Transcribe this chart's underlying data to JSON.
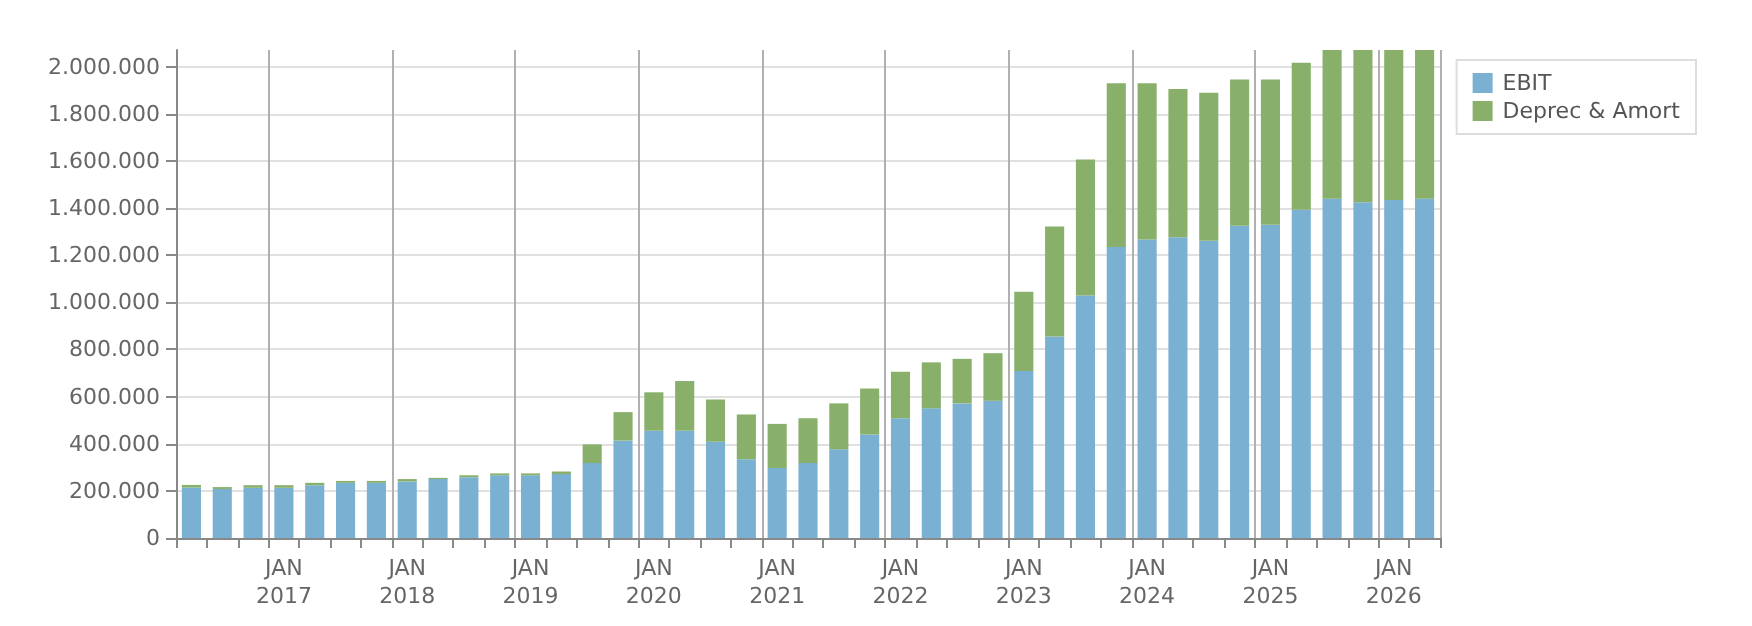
{
  "chart_data": {
    "type": "bar",
    "stacked": true,
    "categories": [
      null,
      null,
      null,
      "JAN\n2017",
      null,
      null,
      null,
      "JAN\n2018",
      null,
      null,
      null,
      "JAN\n2019",
      null,
      null,
      null,
      "JAN\n2020",
      null,
      null,
      null,
      "JAN\n2021",
      null,
      null,
      null,
      "JAN\n2022",
      null,
      null,
      null,
      "JAN\n2023",
      null,
      null,
      null,
      "JAN\n2024",
      null,
      null,
      null,
      "JAN\n2025",
      null,
      null,
      null,
      "JAN\n2026",
      null
    ],
    "series": [
      {
        "name": "EBIT",
        "color": "#7ab0d2",
        "values": [
          214000,
          208000,
          213000,
          213000,
          224000,
          234000,
          234000,
          240000,
          250000,
          258000,
          266000,
          266000,
          271000,
          318000,
          413000,
          455000,
          455000,
          408000,
          334000,
          297000,
          318000,
          376000,
          439000,
          508000,
          550000,
          571000,
          582000,
          708000,
          855000,
          1029000,
          1234000,
          1266000,
          1276000,
          1261000,
          1324000,
          1329000,
          1392000,
          1439000,
          1424000,
          1434000,
          1439000
        ]
      },
      {
        "name": "Deprec & Amort",
        "color": "#88b06a",
        "values": [
          11000,
          8000,
          11000,
          11000,
          10000,
          8000,
          8000,
          10000,
          5000,
          8000,
          8000,
          8000,
          11000,
          79000,
          121000,
          163000,
          211000,
          179000,
          190000,
          187000,
          190000,
          195000,
          195000,
          197000,
          195000,
          189000,
          202000,
          337000,
          466000,
          576000,
          695000,
          663000,
          629000,
          628000,
          621000,
          616000,
          624000,
          631000,
          646000,
          636000,
          631000
        ]
      }
    ],
    "ylim": [
      0,
      2070000
    ],
    "yticks": [
      0,
      {
        "value": 200000,
        "label": "200.000"
      },
      {
        "value": 400000,
        "label": "400.000"
      },
      {
        "value": 600000,
        "label": "600.000"
      },
      {
        "value": 800000,
        "label": "800.000"
      },
      {
        "value": 1000000,
        "label": "1.000.000"
      },
      {
        "value": 1200000,
        "label": "1.200.000"
      },
      {
        "value": 1400000,
        "label": "1.400.000"
      },
      {
        "value": 1600000,
        "label": "1.600.000"
      },
      {
        "value": 1800000,
        "label": "1.800.000"
      },
      {
        "value": 2000000,
        "label": "2.000.000"
      }
    ],
    "grid": true,
    "legend": "top right"
  }
}
